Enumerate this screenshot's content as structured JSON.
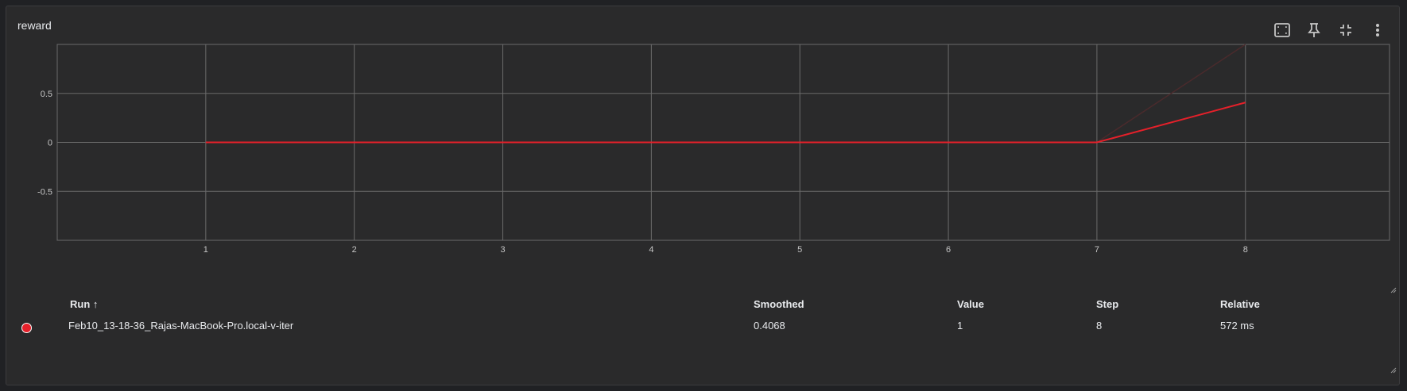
{
  "card": {
    "title": "reward"
  },
  "toolbar": {
    "icons": [
      "fit-domain-icon",
      "pin-icon",
      "collapse-icon",
      "more-vert-icon"
    ]
  },
  "colors": {
    "background": "#2a2a2b",
    "grid": "#6b6b6b",
    "run": "#e5202a",
    "raw_line": "#4a2a2c"
  },
  "chart_data": {
    "type": "line",
    "title": "reward",
    "xlabel": "",
    "ylabel": "",
    "xlim": [
      0,
      8.97
    ],
    "ylim": [
      -1,
      1
    ],
    "x_ticks": [
      "1",
      "2",
      "3",
      "4",
      "5",
      "6",
      "7",
      "8"
    ],
    "y_ticks": [
      "0.5",
      "0",
      "-0.5"
    ],
    "grid": true,
    "series": [
      {
        "name": "Feb10_13-18-36_Rajas-MacBook-Pro.local-v-iter",
        "x": [
          1,
          2,
          3,
          4,
          5,
          6,
          7,
          8
        ],
        "smoothed": [
          0,
          0,
          0,
          0,
          0,
          0,
          0,
          0.4068
        ],
        "raw": [
          0,
          0,
          0,
          0,
          0,
          0,
          0,
          1
        ]
      }
    ]
  },
  "table": {
    "headers": {
      "run": "Run ↑",
      "smoothed": "Smoothed",
      "value": "Value",
      "step": "Step",
      "relative": "Relative"
    },
    "rows": [
      {
        "run": "Feb10_13-18-36_Rajas-MacBook-Pro.local-v-iter",
        "smoothed": "0.4068",
        "value": "1",
        "step": "8",
        "relative": "572 ms"
      }
    ]
  }
}
